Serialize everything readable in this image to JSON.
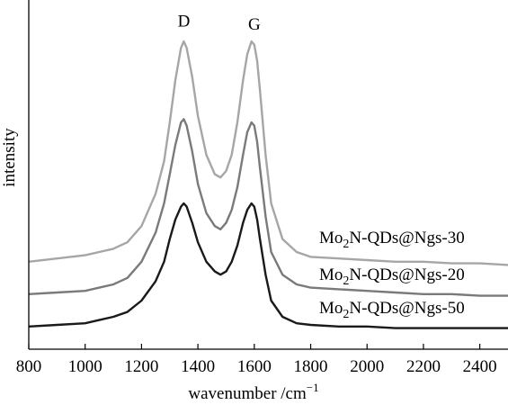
{
  "chart_data": {
    "type": "line",
    "xlabel": "wavenumber /cm",
    "xlabel_sup": "−1",
    "ylabel": "intensity",
    "xlim": [
      800,
      2500
    ],
    "ylim": [
      0,
      100
    ],
    "x_ticks": [
      800,
      1000,
      1200,
      1400,
      1600,
      1800,
      2000,
      2200,
      2400
    ],
    "grid": false,
    "peak_labels": [
      {
        "text": "D",
        "x": 1350,
        "y": 99
      },
      {
        "text": "G",
        "x": 1600,
        "y": 98
      }
    ],
    "series": [
      {
        "name_parts": {
          "pre": "Mo",
          "sub": "2",
          "post": "N-QDs@Ngs-30"
        },
        "color": "#a6a6a6",
        "x": [
          800,
          900,
          1000,
          1050,
          1100,
          1150,
          1200,
          1250,
          1280,
          1300,
          1320,
          1340,
          1350,
          1360,
          1380,
          1400,
          1430,
          1460,
          1480,
          1500,
          1520,
          1540,
          1560,
          1575,
          1590,
          1600,
          1610,
          1620,
          1640,
          1660,
          1700,
          1750,
          1800,
          1900,
          2000,
          2100,
          2200,
          2300,
          2400,
          2500
        ],
        "y": [
          27,
          28,
          29,
          30,
          31,
          33,
          38,
          48,
          58,
          70,
          83,
          93,
          95,
          93,
          84,
          72,
          60,
          54,
          53,
          55,
          60,
          70,
          83,
          91,
          95,
          94,
          89,
          80,
          60,
          45,
          34,
          30,
          28.5,
          28,
          27.5,
          27,
          27,
          26.5,
          26.5,
          26
        ]
      },
      {
        "name_parts": {
          "pre": "Mo",
          "sub": "2",
          "post": "N-QDs@Ngs-20"
        },
        "color": "#7a7a7a",
        "x": [
          800,
          900,
          1000,
          1050,
          1100,
          1150,
          1200,
          1250,
          1280,
          1300,
          1320,
          1340,
          1350,
          1360,
          1380,
          1400,
          1430,
          1460,
          1480,
          1500,
          1520,
          1540,
          1560,
          1575,
          1590,
          1600,
          1610,
          1620,
          1640,
          1660,
          1700,
          1750,
          1800,
          1900,
          2000,
          2100,
          2200,
          2300,
          2400,
          2500
        ],
        "y": [
          17,
          17.5,
          18,
          19,
          20,
          22,
          27,
          36,
          45,
          54,
          63,
          70,
          71,
          69,
          61,
          51,
          42,
          38,
          37,
          39,
          43,
          50,
          60,
          67,
          70,
          69,
          64,
          56,
          41,
          30,
          23,
          20,
          19,
          18.5,
          18,
          17.5,
          17,
          17,
          16.5,
          16.5
        ]
      },
      {
        "name_parts": {
          "pre": "Mo",
          "sub": "2",
          "post": "N-QDs@Ngs-50"
        },
        "color": "#1a1a1a",
        "x": [
          800,
          900,
          1000,
          1050,
          1100,
          1150,
          1200,
          1250,
          1280,
          1300,
          1320,
          1340,
          1350,
          1360,
          1380,
          1400,
          1430,
          1460,
          1480,
          1500,
          1520,
          1540,
          1560,
          1575,
          1590,
          1600,
          1610,
          1620,
          1640,
          1660,
          1700,
          1750,
          1800,
          1900,
          2000,
          2100,
          2200,
          2300,
          2400,
          2500
        ],
        "y": [
          7,
          7.5,
          8,
          9,
          10,
          11.5,
          15,
          21,
          27,
          34,
          40,
          44,
          45,
          44,
          39,
          33,
          27,
          24,
          23,
          24,
          27,
          32,
          39,
          43,
          45,
          44,
          40,
          34,
          23,
          15,
          10,
          8,
          7.5,
          7,
          7,
          6.5,
          6.5,
          6.5,
          6.5,
          6.5
        ]
      }
    ]
  }
}
